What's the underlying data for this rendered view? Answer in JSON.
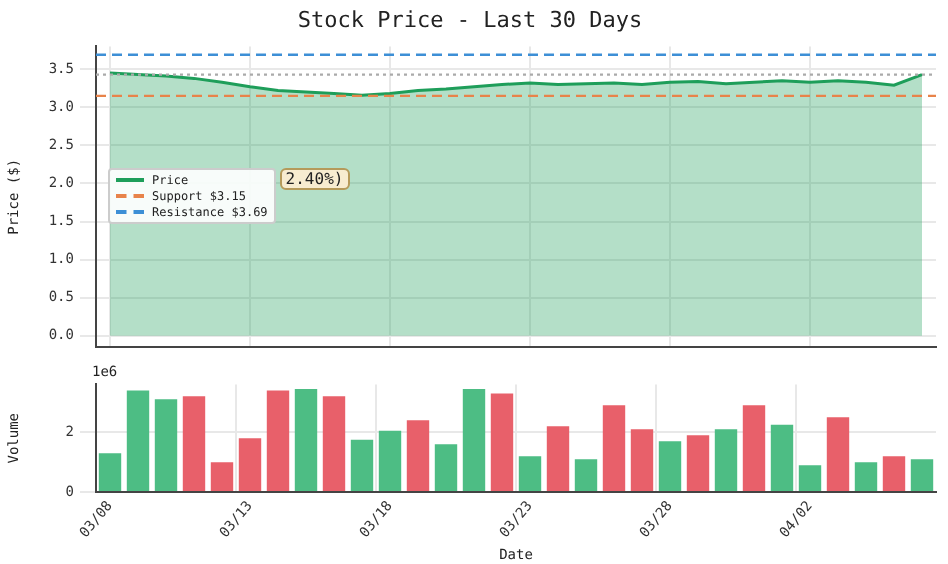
{
  "chart_data": [
    {
      "type": "area",
      "title": "Stock Price - Last 30 Days",
      "ylabel": "Price ($)",
      "categories": [
        null,
        null,
        null,
        null,
        null,
        null,
        null,
        null,
        null,
        null,
        null,
        null,
        null,
        null,
        null,
        null,
        null,
        null,
        null,
        null,
        null,
        null,
        null,
        null,
        null,
        null,
        null,
        null,
        null,
        null
      ],
      "series": [
        {
          "name": "Price",
          "color": "#1e9e5a",
          "values": [
            3.45,
            3.43,
            3.41,
            3.38,
            3.33,
            3.27,
            3.22,
            3.2,
            3.18,
            3.16,
            3.18,
            3.22,
            3.24,
            3.27,
            3.3,
            3.32,
            3.3,
            3.31,
            3.32,
            3.3,
            3.33,
            3.34,
            3.31,
            3.33,
            3.35,
            3.33,
            3.35,
            3.33,
            3.29,
            3.43
          ]
        }
      ],
      "ylim": [
        -0.15,
        3.8
      ],
      "yticks": [
        {
          "value": 0,
          "label": "0.0"
        },
        0.5,
        {
          "value": 1,
          "label": "1.0"
        },
        1.5,
        {
          "value": 2,
          "label": "2.0"
        },
        2.5,
        {
          "value": 3,
          "label": "3.0"
        },
        3.5
      ],
      "ref_lines": [
        {
          "axis": "y",
          "value": 3.15,
          "label": "Support $3.15",
          "color": "#e8834a",
          "line_style": "dashed"
        },
        {
          "axis": "y",
          "value": 3.69,
          "label": "Resistance $3.69",
          "color": "#3d8fd6",
          "line_style": "dashed"
        },
        {
          "axis": "y",
          "value": 3.43,
          "label": null,
          "color": "#aaaaaa",
          "line_style": "dotted"
        }
      ],
      "annotations": [
        "2.40%)"
      ],
      "grid": true,
      "legend": "left",
      "tick_labels": "y"
    },
    {
      "type": "bar",
      "xlabel": "Date",
      "ylabel": "Volume",
      "categories": [
        "03/08",
        null,
        null,
        null,
        null,
        "03/13",
        null,
        null,
        null,
        null,
        "03/18",
        null,
        null,
        null,
        null,
        "03/23",
        null,
        null,
        null,
        null,
        "03/28",
        null,
        null,
        null,
        null,
        "04/02",
        null,
        null,
        null,
        null
      ],
      "values": [
        1.3,
        3.4,
        3.1,
        3.2,
        1.0,
        1.8,
        3.4,
        3.45,
        3.2,
        1.75,
        2.05,
        2.4,
        1.6,
        3.45,
        3.3,
        1.2,
        2.2,
        1.1,
        2.9,
        2.1,
        1.7,
        1.9,
        2.1,
        2.9,
        2.25,
        0.9,
        2.5,
        1.0,
        1.2,
        1.1
      ],
      "colors": [
        "#4dbd84",
        "#4dbd84",
        "#4dbd84",
        "#e8606a",
        "#e8606a",
        "#e8606a",
        "#e8606a",
        "#4dbd84",
        "#e8606a",
        "#4dbd84",
        "#4dbd84",
        "#e8606a",
        "#4dbd84",
        "#4dbd84",
        "#e8606a",
        "#4dbd84",
        "#e8606a",
        "#4dbd84",
        "#e8606a",
        "#e8606a",
        "#4dbd84",
        "#e8606a",
        "#4dbd84",
        "#e8606a",
        "#4dbd84",
        "#4dbd84",
        "#e8606a",
        "#4dbd84",
        "#e8606a",
        "#4dbd84"
      ],
      "ylim": [
        0,
        3.6
      ],
      "yticks": [
        0,
        2
      ],
      "annotations": [
        "1e6"
      ],
      "grid": true
    }
  ]
}
